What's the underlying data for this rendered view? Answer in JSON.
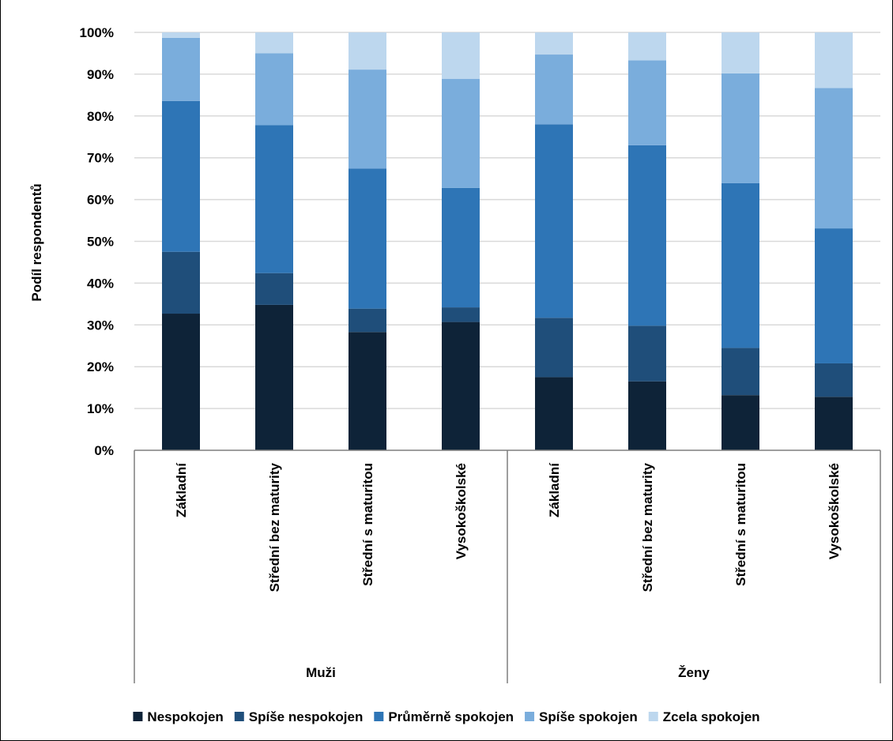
{
  "colors": {
    "nespokojen": "#0e2338",
    "spise_nespokojen": "#1f4e7a",
    "prumerne_spokojen": "#2e75b6",
    "spise_spokojen": "#7aaddc",
    "zcela_spokojen": "#bdd7ee",
    "grid": "#d9d9d9",
    "axis": "#7f7f7f"
  },
  "chart_data": {
    "type": "bar",
    "stacked": true,
    "title": "",
    "ylabel": "Podíl respondentů",
    "xlabel": "",
    "ylim": [
      0,
      100
    ],
    "yticks": [
      0,
      10,
      20,
      30,
      40,
      50,
      60,
      70,
      80,
      90,
      100
    ],
    "ytick_suffix": "%",
    "grid": true,
    "legend_position": "bottom",
    "groups": [
      {
        "label": "Muži",
        "categories": [
          "Základní",
          "Střední bez maturity",
          "Střední s maturitou",
          "Vysokoškolské"
        ]
      },
      {
        "label": "Ženy",
        "categories": [
          "Základní",
          "Střední bez maturity",
          "Střední s maturitou",
          "Vysokoškolské"
        ]
      }
    ],
    "series": [
      {
        "name": "Nespokojen",
        "color_key": "nespokojen",
        "values": [
          32.7,
          34.8,
          28.3,
          30.7,
          17.5,
          16.5,
          13.2,
          12.8
        ]
      },
      {
        "name": "Spíše nespokojen",
        "color_key": "spise_nespokojen",
        "values": [
          14.8,
          7.6,
          5.6,
          3.5,
          14.2,
          13.3,
          11.3,
          8.0
        ]
      },
      {
        "name": "Průměrně spokojen",
        "color_key": "prumerne_spokojen",
        "values": [
          36.1,
          35.4,
          33.5,
          28.6,
          46.3,
          43.2,
          39.4,
          32.3
        ]
      },
      {
        "name": "Spíše spokojen",
        "color_key": "spise_spokojen",
        "values": [
          15.1,
          17.2,
          23.7,
          26.1,
          16.7,
          20.3,
          26.3,
          33.6
        ]
      },
      {
        "name": "Zcela spokojen",
        "color_key": "zcela_spokojen",
        "values": [
          1.3,
          5.0,
          8.9,
          11.1,
          5.3,
          6.7,
          9.8,
          13.3
        ]
      }
    ]
  }
}
